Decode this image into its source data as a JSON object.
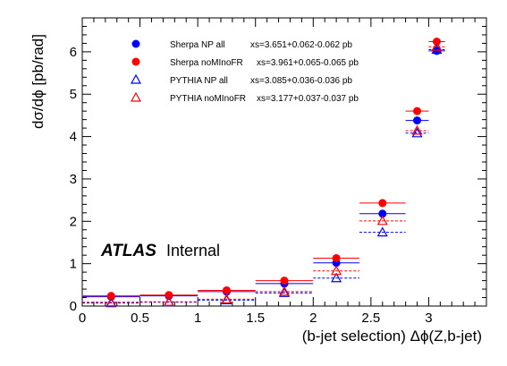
{
  "chart_data": {
    "type": "scatter",
    "ylabel": "dσ/dϕ [pb/rad]",
    "xlabel": "(b-jet selection) Δϕ(Z,b-jet)",
    "xlim": [
      0,
      3.5
    ],
    "ylim": [
      0,
      6.8
    ],
    "x_ticks": [
      "0",
      "0.5",
      "1",
      "1.5",
      "2",
      "2.5",
      "3"
    ],
    "y_ticks": [
      "0",
      "1",
      "2",
      "3",
      "4",
      "5",
      "6"
    ],
    "atlas_label": "ATLAS",
    "atlas_sublabel": "Internal",
    "bins": [
      [
        0,
        0.5
      ],
      [
        0.5,
        1.0
      ],
      [
        1.0,
        1.5
      ],
      [
        1.5,
        2.0
      ],
      [
        2.0,
        2.4
      ],
      [
        2.4,
        2.8
      ],
      [
        2.8,
        3.0
      ],
      [
        3.0,
        3.14159
      ]
    ],
    "series": [
      {
        "name": "Sherpa NP all",
        "xs_text": "xs=3.651+0.062-0.062 pb",
        "marker": "filled-circle",
        "color": "#0000ff",
        "line_style": "solid",
        "x": [
          0.25,
          0.75,
          1.25,
          1.75,
          2.2,
          2.6,
          2.9,
          3.07
        ],
        "y": [
          0.22,
          0.24,
          0.34,
          0.53,
          1.02,
          2.18,
          4.38,
          6.02
        ]
      },
      {
        "name": "Sherpa noMInoFR",
        "xs_text": "xs=3.961+0.065-0.065 pb",
        "marker": "filled-circle",
        "color": "#ff0000",
        "line_style": "solid",
        "x": [
          0.25,
          0.75,
          1.25,
          1.75,
          2.2,
          2.6,
          2.9,
          3.07
        ],
        "y": [
          0.24,
          0.26,
          0.37,
          0.6,
          1.13,
          2.43,
          4.6,
          6.24
        ]
      },
      {
        "name": "PYTHIA NP all",
        "xs_text": "xs=3.085+0.036-0.036 pb",
        "marker": "open-triangle",
        "color": "#0000ff",
        "line_style": "dashed",
        "x": [
          0.25,
          0.75,
          1.25,
          1.75,
          2.2,
          2.6,
          2.9,
          3.07
        ],
        "y": [
          0.07,
          0.09,
          0.14,
          0.31,
          0.66,
          1.74,
          4.08,
          6.05
        ]
      },
      {
        "name": "PYTHIA noMInoFR",
        "xs_text": "xs=3.177+0.037-0.037 pb",
        "marker": "open-triangle",
        "color": "#ff0000",
        "line_style": "dashed",
        "x": [
          0.25,
          0.75,
          1.25,
          1.75,
          2.2,
          2.6,
          2.9,
          3.07
        ],
        "y": [
          0.09,
          0.1,
          0.16,
          0.34,
          0.83,
          2.01,
          4.14,
          6.12
        ]
      }
    ]
  }
}
